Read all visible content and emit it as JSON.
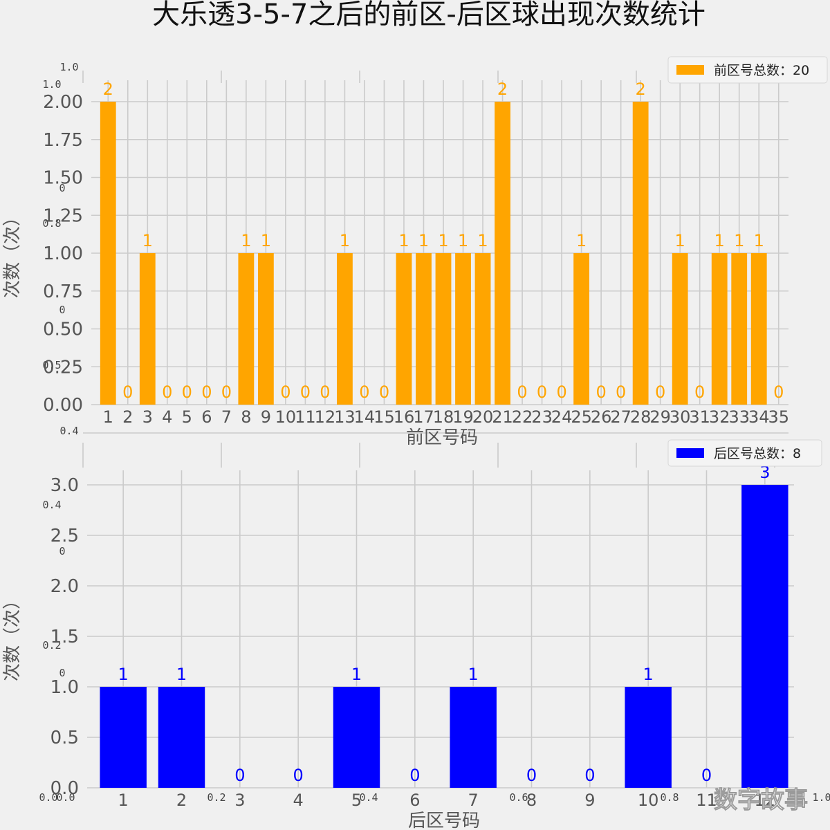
{
  "title": "大乐透3-5-7之后的前区-后区球出现次数统计",
  "watermark": "数字故事",
  "ghost_ticks": {
    "top_y": [
      "1.0",
      "1.0",
      "0",
      "0.8",
      "0",
      "0.5",
      "0.4"
    ],
    "mid_y": [
      "0.4",
      "0",
      "0.2",
      "0"
    ],
    "bottom_x": [
      "0.0",
      "0.0",
      "0.2",
      "0.4",
      "0.6",
      "0.8",
      "1.0"
    ]
  },
  "chart_data": [
    {
      "type": "bar",
      "title": "",
      "xlabel": "前区号码",
      "ylabel": "次数（次）",
      "ylim": [
        0,
        2.0
      ],
      "yticks": [
        "0.00",
        "0.25",
        "0.50",
        "0.75",
        "1.00",
        "1.25",
        "1.50",
        "1.75",
        "2.00"
      ],
      "grid": true,
      "legend_position": "top-right",
      "color": "#ffa500",
      "label_color": "#ffa500",
      "categories": [
        "1",
        "2",
        "3",
        "4",
        "5",
        "6",
        "7",
        "8",
        "9",
        "10",
        "11",
        "12",
        "13",
        "14",
        "15",
        "16",
        "17",
        "18",
        "19",
        "20",
        "21",
        "22",
        "23",
        "24",
        "25",
        "26",
        "27",
        "28",
        "29",
        "30",
        "31",
        "32",
        "33",
        "34",
        "35"
      ],
      "series": [
        {
          "name": "前区号总数：20",
          "values": [
            2,
            0,
            1,
            0,
            0,
            0,
            0,
            1,
            1,
            0,
            0,
            0,
            1,
            0,
            0,
            1,
            1,
            1,
            1,
            1,
            2,
            0,
            0,
            0,
            1,
            0,
            0,
            2,
            0,
            1,
            0,
            1,
            1,
            1,
            0
          ]
        }
      ]
    },
    {
      "type": "bar",
      "title": "",
      "xlabel": "后区号码",
      "ylabel": "次数（次）",
      "ylim": [
        0,
        3.0
      ],
      "yticks": [
        "0.0",
        "0.5",
        "1.0",
        "1.5",
        "2.0",
        "2.5",
        "3.0"
      ],
      "grid": true,
      "legend_position": "top-right",
      "color": "#0000ff",
      "label_color": "#0000ff",
      "categories": [
        "1",
        "2",
        "3",
        "4",
        "5",
        "6",
        "7",
        "8",
        "9",
        "10",
        "11",
        "12"
      ],
      "series": [
        {
          "name": "后区号总数：8",
          "values": [
            1,
            1,
            0,
            0,
            1,
            0,
            1,
            0,
            0,
            1,
            0,
            3
          ]
        }
      ]
    }
  ]
}
